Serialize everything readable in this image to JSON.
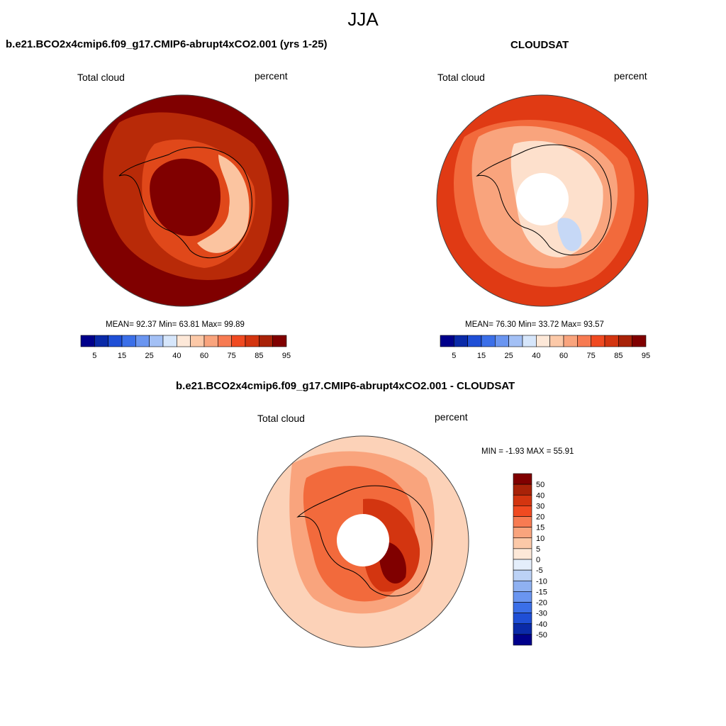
{
  "title": "JJA",
  "top_left": {
    "case_title": "b.e21.BCO2x4cmip6.f09_g17.CMIP6-abrupt4xCO2.001 (yrs 1-25)",
    "variable": "Total cloud",
    "units": "percent",
    "stats": "MEAN=  92.37  Min=  63.81  Max=  99.89"
  },
  "top_right": {
    "case_title": "CLOUDSAT",
    "variable": "Total cloud",
    "units": "percent",
    "stats": "MEAN=  76.30  Min=  33.72  Max=  93.57"
  },
  "bottom": {
    "case_title": "b.e21.BCO2x4cmip6.f09_g17.CMIP6-abrupt4xCO2.001 - CLOUDSAT",
    "variable": "Total cloud",
    "units": "percent",
    "stats": "MIN =  -1.93 MAX =  55.91"
  },
  "abs_colorbar": {
    "tick_labels": [
      "5",
      "15",
      "25",
      "40",
      "60",
      "75",
      "85",
      "95"
    ],
    "colors": [
      "#00008b",
      "#0a2aa8",
      "#1f4fd6",
      "#3b6fe8",
      "#6a95f0",
      "#a3c0f5",
      "#d6e6fb",
      "#fde8d8",
      "#fcc9a8",
      "#f9a47d",
      "#f77b52",
      "#f04a21",
      "#d33510",
      "#a82208",
      "#800000"
    ]
  },
  "diff_colorbar": {
    "tick_labels": [
      "50",
      "40",
      "30",
      "20",
      "15",
      "10",
      "5",
      "0",
      "-5",
      "-10",
      "-15",
      "-20",
      "-30",
      "-40",
      "-50"
    ],
    "colors": [
      "#800000",
      "#a82208",
      "#d33510",
      "#f04a21",
      "#f77b52",
      "#f9a47d",
      "#fcc9a8",
      "#fde8d8",
      "#e4eefb",
      "#bcd2f6",
      "#8fb1f1",
      "#6a95f0",
      "#3b6fe8",
      "#1f4fd6",
      "#0a2aa8",
      "#00008b"
    ]
  },
  "colors": {
    "model_bg": "#800000",
    "obs_bg": "#e03a14",
    "diff_bg": "#fcd2b8",
    "coastline": "#000000"
  }
}
